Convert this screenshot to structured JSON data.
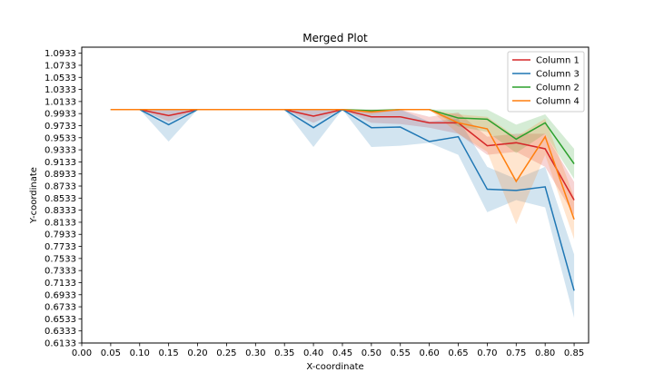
{
  "chart_data": {
    "type": "line",
    "title": "Merged Plot",
    "xlabel": "X-coordinate",
    "ylabel": "Y-coordinate",
    "xlim": [
      0.0,
      0.875
    ],
    "ylim": [
      0.6133,
      1.1033
    ],
    "x_ticks": [
      "0.00",
      "0.05",
      "0.10",
      "0.15",
      "0.20",
      "0.25",
      "0.30",
      "0.35",
      "0.40",
      "0.45",
      "0.50",
      "0.55",
      "0.60",
      "0.65",
      "0.70",
      "0.75",
      "0.80",
      "0.85"
    ],
    "y_ticks": [
      "0.6133",
      "0.6333",
      "0.6533",
      "0.6733",
      "0.6933",
      "0.7133",
      "0.7333",
      "0.7533",
      "0.7733",
      "0.7933",
      "0.8133",
      "0.8333",
      "0.8533",
      "0.8733",
      "0.8933",
      "0.9133",
      "0.9333",
      "0.9533",
      "0.9733",
      "0.9933",
      "1.0133",
      "1.0333",
      "1.0533",
      "1.0733",
      "1.0933"
    ],
    "grid": false,
    "legend_position": "top-right",
    "x": [
      0.05,
      0.1,
      0.15,
      0.2,
      0.25,
      0.3,
      0.35,
      0.4,
      0.45,
      0.5,
      0.55,
      0.6,
      0.65,
      0.7,
      0.75,
      0.8,
      0.85
    ],
    "series": [
      {
        "name": "Column 1",
        "color": "#d62728",
        "values": [
          1.0,
          1.0,
          0.99,
          1.0,
          1.0,
          1.0,
          1.0,
          0.989,
          1.0,
          0.988,
          0.988,
          0.978,
          0.978,
          0.94,
          0.945,
          0.935,
          0.85
        ],
        "lower": [
          1.0,
          1.0,
          0.98,
          1.0,
          1.0,
          1.0,
          1.0,
          0.978,
          1.0,
          0.978,
          0.976,
          0.97,
          0.96,
          0.925,
          0.93,
          0.905,
          0.825
        ],
        "upper": [
          1.0,
          1.0,
          1.0,
          1.0,
          1.0,
          1.0,
          1.0,
          1.0,
          1.0,
          0.998,
          1.0,
          0.988,
          0.995,
          0.955,
          0.96,
          0.96,
          0.88
        ]
      },
      {
        "name": "Column 3",
        "color": "#1f77b4",
        "values": [
          1.0,
          1.0,
          0.975,
          1.0,
          1.0,
          1.0,
          1.0,
          0.97,
          1.0,
          0.97,
          0.971,
          0.947,
          0.955,
          0.868,
          0.866,
          0.872,
          0.7
        ],
        "lower": [
          1.0,
          1.0,
          0.947,
          1.0,
          1.0,
          1.0,
          1.0,
          0.938,
          1.0,
          0.938,
          0.94,
          0.945,
          0.925,
          0.83,
          0.85,
          0.838,
          0.655
        ],
        "upper": [
          1.0,
          1.0,
          1.0,
          1.0,
          1.0,
          1.0,
          1.0,
          1.0,
          1.0,
          1.0,
          1.0,
          0.98,
          0.985,
          0.905,
          0.885,
          0.905,
          0.76
        ]
      },
      {
        "name": "Column 2",
        "color": "#2ca02c",
        "values": [
          1.0,
          1.0,
          1.0,
          1.0,
          1.0,
          1.0,
          1.0,
          1.0,
          1.0,
          0.998,
          1.0,
          1.0,
          0.986,
          0.984,
          0.951,
          0.978,
          0.91
        ],
        "lower": [
          1.0,
          1.0,
          1.0,
          1.0,
          1.0,
          1.0,
          1.0,
          1.0,
          1.0,
          0.998,
          1.0,
          1.0,
          0.972,
          0.963,
          0.928,
          0.96,
          0.885
        ],
        "upper": [
          1.0,
          1.0,
          1.0,
          1.0,
          1.0,
          1.0,
          1.0,
          1.0,
          1.0,
          1.0,
          1.0,
          1.0,
          1.0,
          1.0,
          0.975,
          0.992,
          0.935
        ]
      },
      {
        "name": "Column 4",
        "color": "#ff7f0e",
        "values": [
          1.0,
          1.0,
          1.0,
          1.0,
          1.0,
          1.0,
          1.0,
          1.0,
          1.0,
          0.996,
          1.0,
          1.0,
          0.978,
          0.968,
          0.881,
          0.955,
          0.818
        ],
        "lower": [
          1.0,
          1.0,
          1.0,
          1.0,
          1.0,
          1.0,
          1.0,
          1.0,
          1.0,
          0.992,
          1.0,
          1.0,
          0.96,
          0.93,
          0.81,
          0.925,
          0.785
        ],
        "upper": [
          1.0,
          1.0,
          1.0,
          1.0,
          1.0,
          1.0,
          1.0,
          1.0,
          1.0,
          1.0,
          1.0,
          1.0,
          0.992,
          0.988,
          0.955,
          0.985,
          0.855
        ]
      }
    ]
  }
}
